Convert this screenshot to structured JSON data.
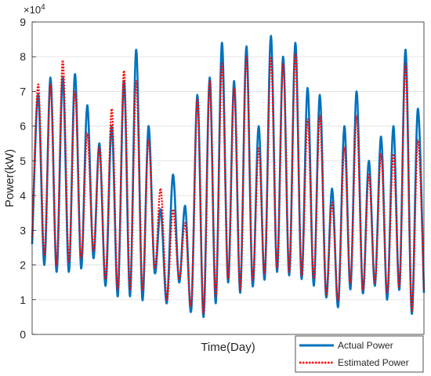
{
  "chart_data": {
    "type": "line",
    "xlabel": "Time(Day)",
    "ylabel": "Power(kW)",
    "y_exponent_base": "×10",
    "y_exponent_power": "4",
    "ylim": [
      0,
      9
    ],
    "yticks": [
      0,
      1,
      2,
      3,
      4,
      5,
      6,
      7,
      8,
      9
    ],
    "xticks_shown": false,
    "grid": "horizontal",
    "legend": {
      "placement": "bottom-right",
      "entries": [
        "Actual Power",
        "Estimated Power"
      ]
    },
    "colors": {
      "actual": "#0072BD",
      "estimated": "#FF0000"
    },
    "x_points": 60,
    "series": [
      {
        "name": "Actual Power",
        "style": "solid",
        "cycles": [
          [
            2.6,
            6.9,
            2.0
          ],
          [
            7.4,
            1.8
          ],
          [
            7.4,
            1.8
          ],
          [
            7.5,
            1.9
          ],
          [
            6.6,
            2.2
          ],
          [
            5.5,
            1.4
          ],
          [
            6.0,
            1.1
          ],
          [
            7.3,
            1.1
          ],
          [
            8.2,
            1.0
          ],
          [
            6.0,
            1.8
          ],
          [
            3.6,
            0.9
          ],
          [
            4.6,
            1.5
          ],
          [
            3.7,
            0.7
          ],
          [
            6.9,
            0.5
          ],
          [
            7.4,
            0.9
          ],
          [
            8.4,
            1.5
          ],
          [
            7.3,
            1.2
          ],
          [
            8.3,
            1.4
          ],
          [
            6.0,
            1.6
          ],
          [
            8.6,
            1.8
          ],
          [
            8.0,
            1.7
          ],
          [
            8.4,
            1.6
          ],
          [
            7.1,
            1.4
          ],
          [
            6.9,
            1.1
          ],
          [
            4.2,
            0.8
          ],
          [
            6.0,
            1.3
          ],
          [
            7.0,
            1.2
          ],
          [
            5.0,
            1.4
          ],
          [
            5.7,
            1.0
          ],
          [
            6.0,
            1.3
          ],
          [
            8.2,
            0.6
          ],
          [
            6.5,
            1.2
          ]
        ]
      },
      {
        "name": "Estimated Power",
        "style": "dotted",
        "cycles": [
          [
            2.8,
            7.2,
            2.3
          ],
          [
            7.2,
            2.0
          ],
          [
            7.9,
            2.1
          ],
          [
            7.0,
            2.2
          ],
          [
            5.8,
            2.4
          ],
          [
            5.4,
            1.6
          ],
          [
            6.5,
            1.3
          ],
          [
            7.6,
            1.3
          ],
          [
            7.3,
            1.3
          ],
          [
            5.6,
            1.9
          ],
          [
            4.2,
            1.0
          ],
          [
            3.6,
            1.6
          ],
          [
            3.2,
            0.9
          ],
          [
            6.8,
            0.6
          ],
          [
            7.3,
            1.1
          ],
          [
            7.8,
            1.6
          ],
          [
            7.1,
            1.3
          ],
          [
            8.0,
            1.6
          ],
          [
            5.4,
            1.8
          ],
          [
            8.0,
            1.9
          ],
          [
            7.8,
            1.8
          ],
          [
            8.1,
            1.7
          ],
          [
            6.2,
            1.6
          ],
          [
            6.3,
            1.2
          ],
          [
            3.8,
            1.0
          ],
          [
            5.4,
            1.5
          ],
          [
            6.3,
            1.3
          ],
          [
            4.6,
            1.5
          ],
          [
            5.2,
            1.2
          ],
          [
            5.2,
            1.4
          ],
          [
            7.8,
            0.7
          ],
          [
            5.6,
            1.3
          ]
        ]
      }
    ]
  }
}
